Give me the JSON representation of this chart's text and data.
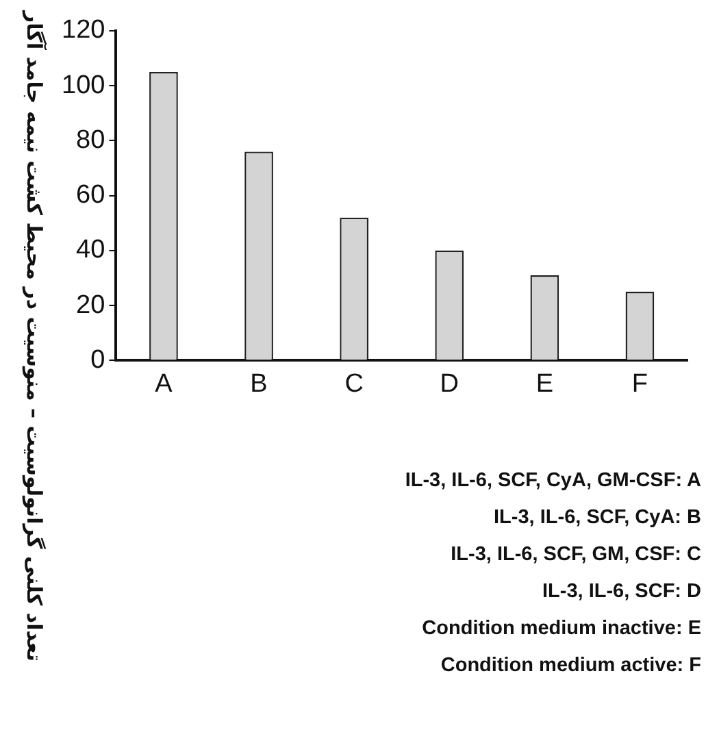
{
  "chart_data": {
    "type": "bar",
    "ylabel": "تعداد کلنی گرانولوسیت – منوسیت در محیط کشت نیمه جامد آگار",
    "categories": [
      "A",
      "B",
      "C",
      "D",
      "E",
      "F"
    ],
    "values": [
      105,
      76,
      52,
      40,
      31,
      25
    ],
    "color": "#d4d4d4",
    "ylim": [
      0,
      120
    ],
    "yticks": [
      0,
      20,
      40,
      60,
      80,
      100,
      120
    ],
    "grid": false,
    "legend": false,
    "annotations": [
      "IL-3, IL-6, SCF, CyA, GM-CSF: A",
      "IL-3, IL-6, SCF, CyA: B",
      "IL-3, IL-6, SCF, GM, CSF: C",
      "IL-3, IL-6, SCF: D",
      "Condition medium inactive: E",
      "Condition medium active: F"
    ]
  }
}
